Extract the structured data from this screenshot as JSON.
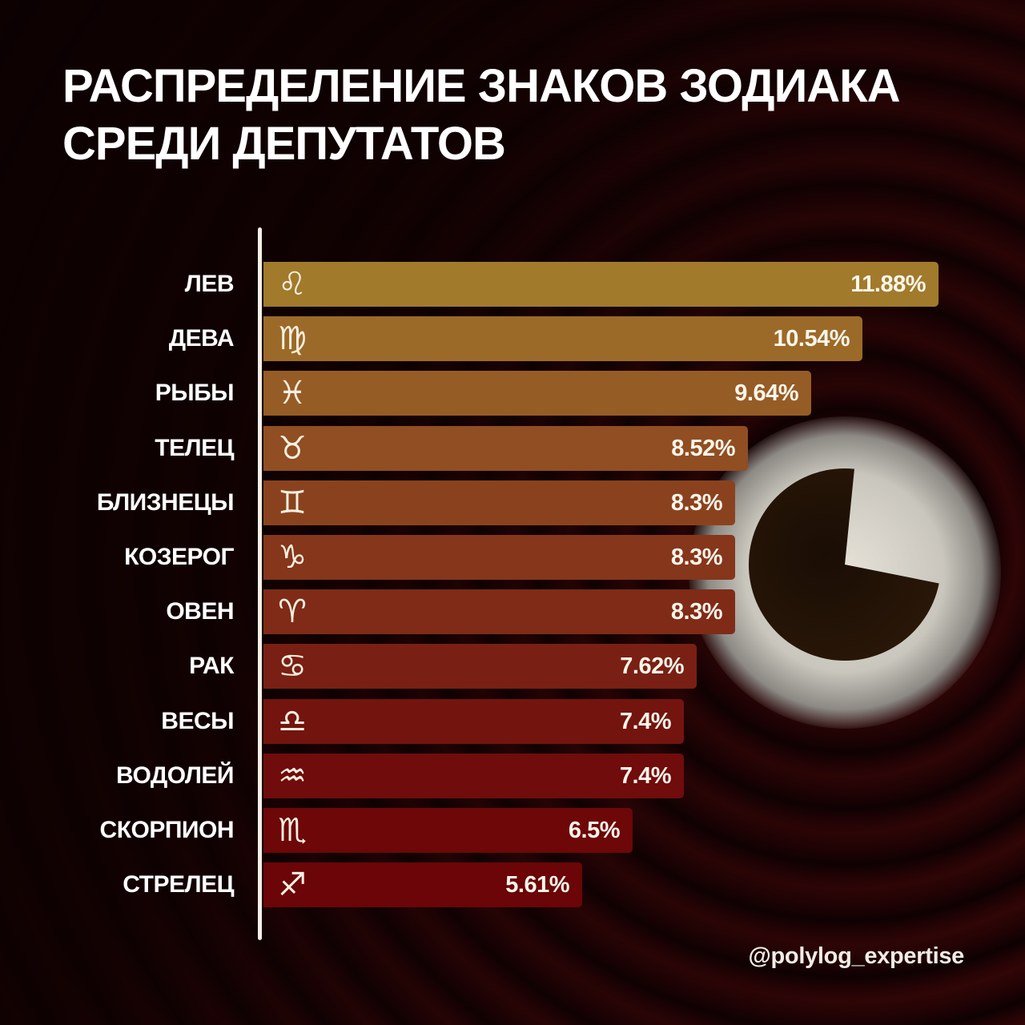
{
  "title": "РАСПРЕДЕЛЕНИЕ ЗНАКОВ ЗОДИАКА СРЕДИ ДЕПУТАТОВ",
  "title_lines": [
    "РАСПРЕДЕЛЕНИЕ ЗНАКОВ ЗОДИАКА",
    "СРЕДИ ДЕПУТАТОВ"
  ],
  "credit": "@polylog_expertise",
  "colors": {
    "bar_top": "#a7792e",
    "bar_bottom": "#6f0507",
    "background": "#140204",
    "text": "#ffffff"
  },
  "rows": [
    {
      "label": "ЛЕВ",
      "icon": "leo-icon",
      "glyph": "♌",
      "value": "11.88%",
      "color": "#a27a2c"
    },
    {
      "label": "ДЕВА",
      "icon": "virgo-icon",
      "glyph": "♍",
      "value": "10.54%",
      "color": "#9c6a28"
    },
    {
      "label": "РЫБЫ",
      "icon": "pisces-icon",
      "glyph": "♓",
      "value": "9.64%",
      "color": "#965c25"
    },
    {
      "label": "ТЕЛЕЦ",
      "icon": "taurus-icon",
      "glyph": "♉",
      "value": "8.52%",
      "color": "#904e22"
    },
    {
      "label": "БЛИЗНЕЦЫ",
      "icon": "gemini-icon",
      "glyph": "♊",
      "value": "8.3%",
      "color": "#8a421e"
    },
    {
      "label": "КОЗЕРОГ",
      "icon": "capricorn-icon",
      "glyph": "♑",
      "value": "8.3%",
      "color": "#85361b"
    },
    {
      "label": "ОВЕН",
      "icon": "aries-icon",
      "glyph": "♈",
      "value": "8.3%",
      "color": "#7f2b17"
    },
    {
      "label": "РАК",
      "icon": "cancer-icon",
      "glyph": "♋",
      "value": "7.62%",
      "color": "#7a1f13"
    },
    {
      "label": "ВЕСЫ",
      "icon": "libra-icon",
      "glyph": "♎",
      "value": "7.4%",
      "color": "#74140e"
    },
    {
      "label": "ВОДОЛЕЙ",
      "icon": "aquarius-icon",
      "glyph": "♒",
      "value": "7.4%",
      "color": "#700c0b"
    },
    {
      "label": "СКОРПИОН",
      "icon": "scorpio-icon",
      "glyph": "♏",
      "value": "6.5%",
      "color": "#6d0708"
    },
    {
      "label": "СТРЕЛЕЦ",
      "icon": "sagittarius-icon",
      "glyph": "♐",
      "value": "5.61%",
      "color": "#6b0507"
    }
  ],
  "chart_data": {
    "type": "bar",
    "orientation": "horizontal",
    "title": "Распределение знаков зодиака среди депутатов",
    "xlabel": "",
    "ylabel": "",
    "unit": "%",
    "categories": [
      "Лев",
      "Дева",
      "Рыбы",
      "Телец",
      "Близнецы",
      "Козерог",
      "Овен",
      "Рак",
      "Весы",
      "Водолей",
      "Скорпион",
      "Стрелец"
    ],
    "values": [
      11.88,
      10.54,
      9.64,
      8.52,
      8.3,
      8.3,
      8.3,
      7.62,
      7.4,
      7.4,
      6.5,
      5.61
    ],
    "data_labels": [
      "11.88%",
      "10.54%",
      "9.64%",
      "8.52%",
      "8.3%",
      "8.3%",
      "8.3%",
      "7.62%",
      "7.4%",
      "7.4%",
      "6.5%",
      "5.61%"
    ],
    "grid": false,
    "legend": null,
    "annotations": [
      "@polylog_expertise"
    ]
  }
}
